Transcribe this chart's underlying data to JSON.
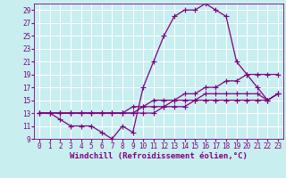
{
  "background_color": "#c8eef0",
  "grid_color": "#ffffff",
  "line_color": "#800080",
  "marker": "+",
  "markersize": 4,
  "linewidth": 0.9,
  "xlabel": "Windchill (Refroidissement éolien,°C)",
  "xlabel_fontsize": 6.5,
  "tick_fontsize": 5.5,
  "ylim": [
    9,
    30
  ],
  "xlim": [
    -0.5,
    23.5
  ],
  "yticks": [
    9,
    11,
    13,
    15,
    17,
    19,
    21,
    23,
    25,
    27,
    29
  ],
  "xticks": [
    0,
    1,
    2,
    3,
    4,
    5,
    6,
    7,
    8,
    9,
    10,
    11,
    12,
    13,
    14,
    15,
    16,
    17,
    18,
    19,
    20,
    21,
    22,
    23
  ],
  "series": [
    [
      13,
      13,
      12,
      11,
      11,
      11,
      10,
      9,
      11,
      10,
      17,
      21,
      25,
      28,
      29,
      29,
      30,
      29,
      28,
      21,
      19,
      17,
      15,
      16
    ],
    [
      13,
      13,
      13,
      13,
      13,
      13,
      13,
      13,
      13,
      14,
      14,
      15,
      15,
      15,
      16,
      16,
      17,
      17,
      18,
      18,
      19,
      19,
      19,
      19
    ],
    [
      13,
      13,
      13,
      13,
      13,
      13,
      13,
      13,
      13,
      13,
      14,
      14,
      14,
      15,
      15,
      15,
      16,
      16,
      16,
      16,
      16,
      16,
      15,
      16
    ],
    [
      13,
      13,
      13,
      13,
      13,
      13,
      13,
      13,
      13,
      13,
      13,
      13,
      14,
      14,
      14,
      15,
      15,
      15,
      15,
      15,
      15,
      15,
      15,
      16
    ]
  ]
}
